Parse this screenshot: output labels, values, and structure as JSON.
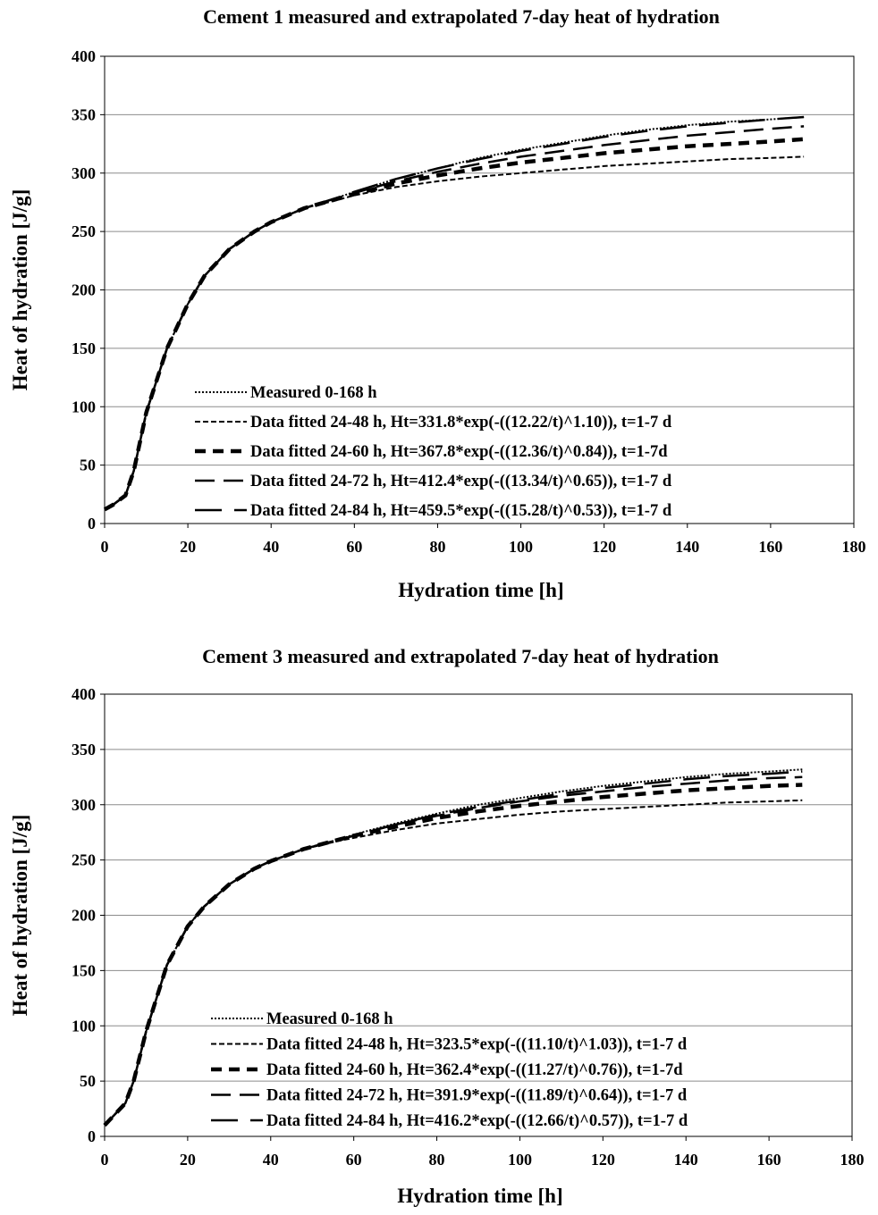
{
  "chart_data": [
    {
      "type": "line",
      "title": "Cement 1 measured and extrapolated 7-day heat of hydration",
      "xlabel": "Hydration time [h]",
      "ylabel": "Heat of hydration [J/g]",
      "xlim": [
        0,
        180
      ],
      "ylim": [
        0,
        400
      ],
      "xticks": [
        0,
        20,
        40,
        60,
        80,
        100,
        120,
        140,
        160,
        180
      ],
      "yticks": [
        0,
        50,
        100,
        150,
        200,
        250,
        300,
        350,
        400
      ],
      "grid": "horizontal",
      "legend_position": "bottom-right",
      "x": [
        0,
        2,
        5,
        7,
        10,
        15,
        20,
        24,
        30,
        36,
        40,
        48,
        56,
        60,
        70,
        80,
        90,
        100,
        110,
        120,
        130,
        140,
        150,
        160,
        168
      ],
      "series": [
        {
          "name": "Measured 0-168 h",
          "dash": "dotted",
          "values": [
            12,
            16,
            24,
            45,
            95,
            150,
            188,
            212,
            235,
            250,
            258,
            270,
            279,
            284,
            295,
            304,
            313,
            320,
            326,
            332,
            337,
            341,
            344,
            346,
            348
          ]
        },
        {
          "name": "Data fitted 24-48 h, Ht=331.8*exp(-((12.22/t)^1.10)),  t=1-7 d",
          "dash": "short",
          "values": [
            12,
            16,
            24,
            45,
            95,
            150,
            188,
            212,
            235,
            250,
            258,
            270,
            277,
            281,
            288,
            293,
            297,
            300,
            303,
            306,
            308,
            310,
            312,
            313,
            314
          ]
        },
        {
          "name": "Data fitted 24-60 h, Ht=367.8*exp(-((12.36/t)^0.84)),  t=1-7d",
          "dash": "medium",
          "values": [
            12,
            16,
            24,
            45,
            95,
            150,
            188,
            212,
            235,
            250,
            258,
            270,
            278,
            282,
            291,
            298,
            304,
            309,
            313,
            317,
            320,
            323,
            325,
            327,
            329
          ]
        },
        {
          "name": "Data fitted 24-72 h, Ht=412.4*exp(-((13.34/t)^0.65)),  t=1-7 d",
          "dash": "long",
          "values": [
            12,
            16,
            24,
            45,
            95,
            150,
            188,
            212,
            235,
            250,
            258,
            270,
            279,
            283,
            293,
            301,
            308,
            314,
            319,
            324,
            328,
            332,
            335,
            338,
            340
          ]
        },
        {
          "name": "Data fitted 24-84 h, Ht=459.5*exp(-((15.28/t)^0.53)),  t=1-7 d",
          "dash": "longgap",
          "values": [
            12,
            16,
            24,
            45,
            95,
            150,
            188,
            212,
            235,
            250,
            258,
            270,
            279,
            284,
            295,
            304,
            312,
            319,
            325,
            331,
            336,
            340,
            343,
            346,
            348
          ]
        }
      ]
    },
    {
      "type": "line",
      "title": "Cement 3 measured and extrapolated 7-day heat of hydration",
      "xlabel": "Hydration time [h]",
      "ylabel": "Heat of hydration [J/g]",
      "xlim": [
        0,
        180
      ],
      "ylim": [
        0,
        400
      ],
      "xticks": [
        0,
        20,
        40,
        60,
        80,
        100,
        120,
        140,
        160,
        180
      ],
      "yticks": [
        0,
        50,
        100,
        150,
        200,
        250,
        300,
        350,
        400
      ],
      "grid": "horizontal",
      "legend_position": "bottom-right",
      "x": [
        0,
        2,
        5,
        7,
        10,
        15,
        20,
        24,
        30,
        36,
        40,
        48,
        56,
        60,
        70,
        80,
        90,
        100,
        110,
        120,
        130,
        140,
        150,
        160,
        168
      ],
      "series": [
        {
          "name": "Measured 0-168 h",
          "dash": "dotted",
          "values": [
            10,
            18,
            30,
            50,
            95,
            155,
            190,
            208,
            228,
            242,
            249,
            260,
            268,
            273,
            283,
            292,
            300,
            306,
            312,
            317,
            321,
            325,
            328,
            330,
            332
          ]
        },
        {
          "name": "Data fitted 24-48 h, Ht=323.5*exp(-((11.10/t)^1.03)),  t=1-7 d",
          "dash": "short",
          "values": [
            10,
            18,
            30,
            50,
            95,
            155,
            190,
            208,
            228,
            242,
            249,
            260,
            267,
            270,
            277,
            283,
            287,
            291,
            294,
            296,
            298,
            300,
            302,
            303,
            304
          ]
        },
        {
          "name": "Data fitted 24-60 h, Ht=362.4*exp(-((11.27/t)^0.76)),  t=1-7d",
          "dash": "medium",
          "values": [
            10,
            18,
            30,
            50,
            95,
            155,
            190,
            208,
            228,
            242,
            249,
            260,
            268,
            272,
            280,
            288,
            294,
            299,
            303,
            307,
            310,
            313,
            315,
            317,
            318
          ]
        },
        {
          "name": "Data fitted 24-72 h, Ht=391.9*exp(-((11.89/t)^0.64)),  t=1-7 d",
          "dash": "long",
          "values": [
            10,
            18,
            30,
            50,
            95,
            155,
            190,
            208,
            228,
            242,
            249,
            260,
            268,
            272,
            282,
            290,
            297,
            303,
            308,
            312,
            316,
            319,
            322,
            324,
            325
          ]
        },
        {
          "name": "Data fitted 24-84 h, Ht=416.2*exp(-((12.66/t)^0.57)),  t=1-7 d",
          "dash": "longgap",
          "values": [
            10,
            18,
            30,
            50,
            95,
            155,
            190,
            208,
            228,
            242,
            249,
            260,
            268,
            272,
            282,
            291,
            298,
            304,
            310,
            315,
            319,
            323,
            326,
            328,
            330
          ]
        }
      ]
    }
  ]
}
